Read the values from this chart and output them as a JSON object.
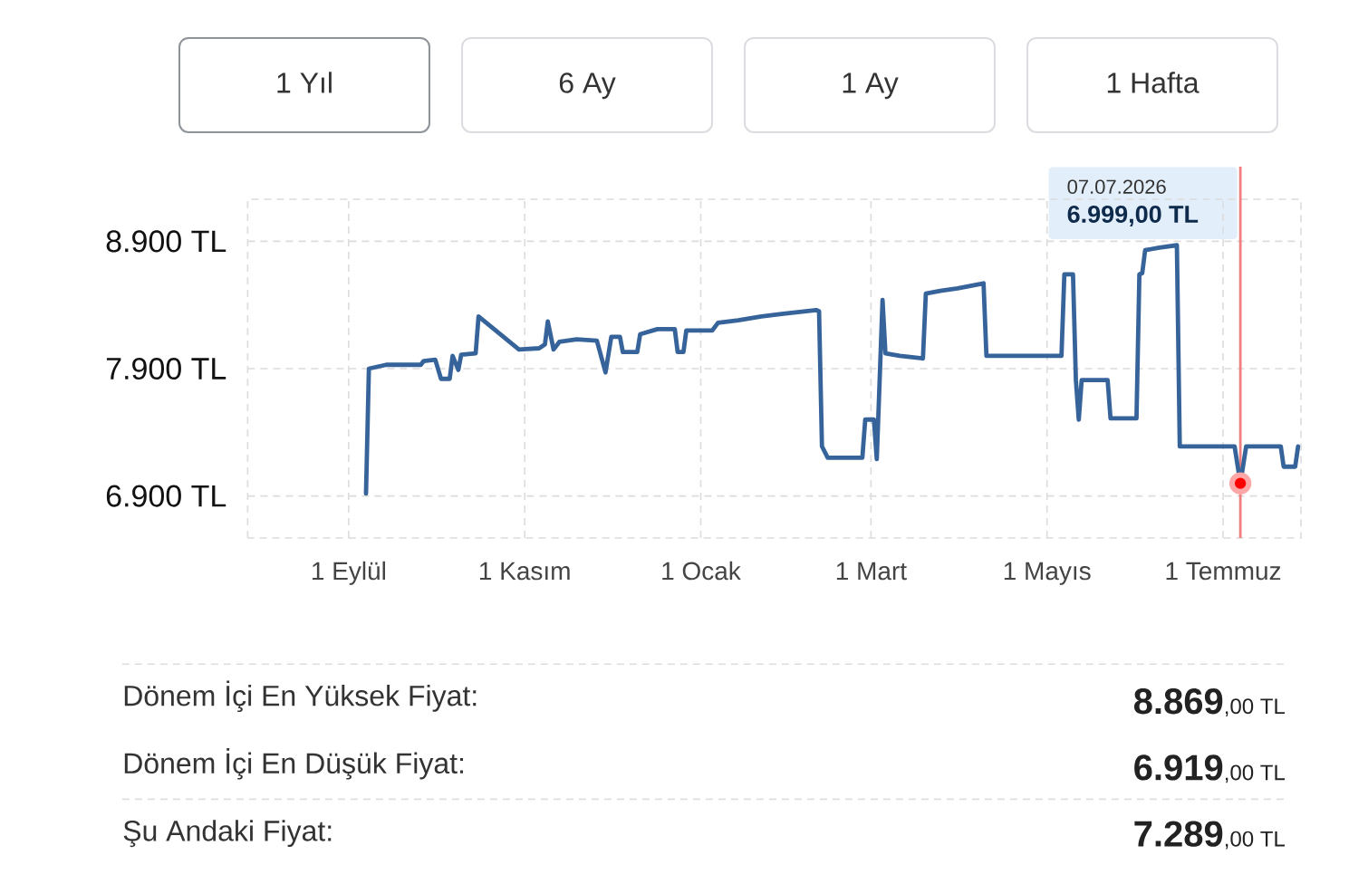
{
  "chart_data": {
    "type": "line",
    "x": [
      "2025-09-07",
      "2025-09-08",
      "2025-09-14",
      "2025-09-26",
      "2025-09-27",
      "2025-10-01",
      "2025-10-03",
      "2025-10-06",
      "2025-10-07",
      "2025-10-09",
      "2025-10-10",
      "2025-10-15",
      "2025-10-16",
      "2025-10-30",
      "2025-11-06",
      "2025-11-08",
      "2025-11-09",
      "2025-11-11",
      "2025-11-13",
      "2025-11-19",
      "2025-11-26",
      "2025-11-29",
      "2025-12-01",
      "2025-12-04",
      "2025-12-05",
      "2025-12-10",
      "2025-12-11",
      "2025-12-17",
      "2025-12-23",
      "2025-12-24",
      "2025-12-26",
      "2025-12-27",
      "2026-01-05",
      "2026-01-07",
      "2026-01-14",
      "2026-01-22",
      "2026-01-29",
      "2026-02-10",
      "2026-02-11",
      "2026-02-12",
      "2026-02-14",
      "2026-02-26",
      "2026-02-27",
      "2026-03-02",
      "2026-03-03",
      "2026-03-05",
      "2026-03-06",
      "2026-03-11",
      "2026-03-19",
      "2026-03-20",
      "2026-03-25",
      "2026-03-31",
      "2026-04-09",
      "2026-04-10",
      "2026-05-06",
      "2026-05-07",
      "2026-05-10",
      "2026-05-11",
      "2026-05-12",
      "2026-05-13",
      "2026-05-22",
      "2026-05-23",
      "2026-06-01",
      "2026-06-02",
      "2026-06-03",
      "2026-06-04",
      "2026-06-09",
      "2026-06-15",
      "2026-06-16",
      "2026-07-05",
      "2026-07-07",
      "2026-07-09",
      "2026-07-21",
      "2026-07-22",
      "2026-07-26",
      "2026-07-27"
    ],
    "series": [
      {
        "color": "#36649a",
        "values": [
          6919,
          7900,
          7930,
          7930,
          7960,
          7970,
          7820,
          7820,
          8000,
          7890,
          8010,
          8020,
          8310,
          8050,
          8060,
          8090,
          8270,
          8050,
          8110,
          8130,
          8120,
          7870,
          8150,
          8150,
          8030,
          8030,
          8170,
          8210,
          8210,
          8030,
          8030,
          8200,
          8200,
          8260,
          8280,
          8310,
          8330,
          8360,
          8350,
          7290,
          7200,
          7200,
          7500,
          7500,
          7190,
          8440,
          8020,
          8000,
          7980,
          8490,
          8510,
          8530,
          8570,
          8000,
          8000,
          8640,
          8640,
          7810,
          7500,
          7810,
          7810,
          7510,
          7510,
          8640,
          8650,
          8830,
          8850,
          8869,
          7289,
          7289,
          6999,
          7289,
          7289,
          7130,
          7130,
          7289
        ]
      },
      {
        "type": "scatter",
        "x": [
          "2026-07-07"
        ],
        "values": [
          6999
        ],
        "color": "#ff0000"
      }
    ],
    "xlim": [
      "2025-07-28",
      "2026-07-28"
    ],
    "ylim": [
      6570,
      9230
    ],
    "xticks": [
      {
        "value": "2025-09-01",
        "label": "1 Eylül"
      },
      {
        "value": "2025-11-01",
        "label": "1 Kasım"
      },
      {
        "value": "2026-01-01",
        "label": "1 Ocak"
      },
      {
        "value": "2026-03-01",
        "label": "1 Mart"
      },
      {
        "value": "2026-05-01",
        "label": "1 Mayıs"
      },
      {
        "value": "2026-07-01",
        "label": "1 Temmuz"
      }
    ],
    "yticks": [
      {
        "value": 6900,
        "label": "6.900 TL"
      },
      {
        "value": 7900,
        "label": "7.900 TL"
      },
      {
        "value": 8900,
        "label": "8.900 TL"
      }
    ],
    "grid": true,
    "ref_lines": [
      {
        "axis": "x",
        "value": "2026-07-07",
        "color": "#ef7f7f"
      }
    ],
    "annotations": [
      "1 Yıl",
      "6 Ay",
      "1 Ay",
      "1 Hafta",
      "07.07.2026 **6.999,00 TL**",
      "Dönem İçi En Yüksek Fiyat:",
      "**8.869**,00 TL",
      "Dönem İçi En Düşük Fiyat:",
      "**6.919**,00 TL",
      "Şu Andaki Fiyat:",
      "**7.289**,00 TL"
    ]
  }
}
